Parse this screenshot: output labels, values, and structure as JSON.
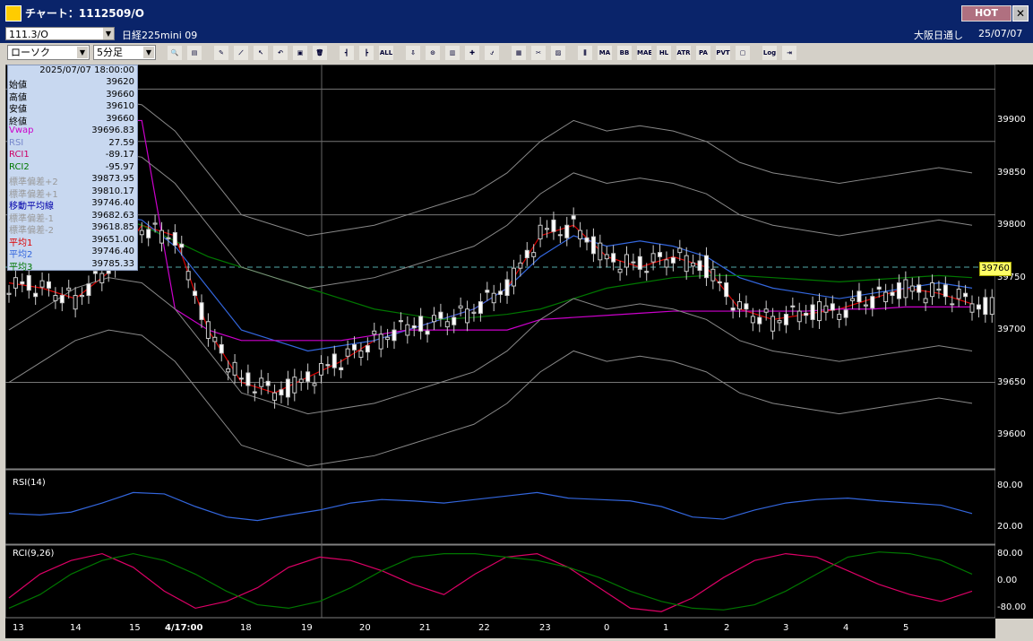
{
  "window": {
    "title": "チャート：1112509/O",
    "hot_label": "HOT",
    "close": "✕"
  },
  "infobar": {
    "symbol": "111.3/O",
    "instrument": "日経225mini 09",
    "source": "大阪日通し",
    "date": "25/07/07"
  },
  "toolbar": {
    "chart_type": "ローソク",
    "timeframe": "5分足",
    "buttons": [
      {
        "name": "zoom",
        "label": "🔍"
      },
      {
        "name": "panel",
        "label": "▤"
      },
      {
        "name": "draw",
        "label": "✎"
      },
      {
        "name": "line",
        "label": "⟋"
      },
      {
        "name": "pointer",
        "label": "↖"
      },
      {
        "name": "undo",
        "label": "↶"
      },
      {
        "name": "note",
        "label": "▣"
      },
      {
        "name": "delete",
        "label": "🗑"
      },
      {
        "name": "candle1",
        "label": "┫"
      },
      {
        "name": "candle2",
        "label": "┣"
      },
      {
        "name": "all",
        "label": "ALL"
      },
      {
        "name": "down",
        "label": "⇩"
      },
      {
        "name": "find",
        "label": "⊙"
      },
      {
        "name": "volume",
        "label": "▥"
      },
      {
        "name": "cross",
        "label": "✚"
      },
      {
        "name": "calc",
        "label": "⍻"
      },
      {
        "name": "grid",
        "label": "▦"
      },
      {
        "name": "tool",
        "label": "✂"
      },
      {
        "name": "color",
        "label": "▨"
      },
      {
        "name": "bars",
        "label": "⫼"
      },
      {
        "name": "ma",
        "label": "MA"
      },
      {
        "name": "bb",
        "label": "BB"
      },
      {
        "name": "mae",
        "label": "MAE"
      },
      {
        "name": "hl",
        "label": "HL"
      },
      {
        "name": "atr",
        "label": "ATR"
      },
      {
        "name": "pa",
        "label": "PA"
      },
      {
        "name": "pvt",
        "label": "PVT"
      },
      {
        "name": "box",
        "label": "▢"
      },
      {
        "name": "log",
        "label": "Log"
      },
      {
        "name": "export",
        "label": "⇥"
      }
    ]
  },
  "info_panel": {
    "datetime": "2025/07/07 18:00:00",
    "rows": [
      {
        "label": "始値",
        "value": "39620",
        "color": "#000"
      },
      {
        "label": "高値",
        "value": "39660",
        "color": "#000"
      },
      {
        "label": "安値",
        "value": "39610",
        "color": "#000"
      },
      {
        "label": "終値",
        "value": "39660",
        "color": "#000"
      },
      {
        "label": "Vwap",
        "value": "39696.83",
        "color": "#cc00cc"
      },
      {
        "label": "RSI",
        "value": "27.59",
        "color": "#7788cc"
      },
      {
        "label": "RCI1",
        "value": "-89.17",
        "color": "#cc0066"
      },
      {
        "label": "RCI2",
        "value": "-95.97",
        "color": "#007700"
      },
      {
        "label": "標準偏差+2",
        "value": "39873.95",
        "color": "#999999"
      },
      {
        "label": "標準偏差+1",
        "value": "39810.17",
        "color": "#999999"
      },
      {
        "label": "移動平均線",
        "value": "39746.40",
        "color": "#0000aa"
      },
      {
        "label": "標準偏差-1",
        "value": "39682.63",
        "color": "#999999"
      },
      {
        "label": "標準偏差-2",
        "value": "39618.85",
        "color": "#999999"
      },
      {
        "label": "平均1",
        "value": "39651.00",
        "color": "#dd0000"
      },
      {
        "label": "平均2",
        "value": "39746.40",
        "color": "#3366dd"
      },
      {
        "label": "平均3",
        "value": "39785.33",
        "color": "#007700"
      }
    ]
  },
  "current_price": "39760",
  "panels": {
    "rsi_label": "RSI(14)",
    "rci_label": "RCI(9,26)"
  },
  "chart_data": {
    "type": "line",
    "title": "",
    "price_axis": {
      "ticks": [
        "39900",
        "39850",
        "39800",
        "39750",
        "39700",
        "39650",
        "39600"
      ],
      "ylim": [
        39570,
        39950
      ]
    },
    "rsi_axis": {
      "ticks": [
        "80.00",
        "20.00"
      ],
      "ylim": [
        0,
        100
      ]
    },
    "rci_axis": {
      "ticks": [
        "80.00",
        "0.00",
        "-80.00"
      ],
      "ylim": [
        -100,
        100
      ]
    },
    "x_ticks": [
      "13",
      "14",
      "15",
      "4/17:00",
      "18",
      "19",
      "20",
      "21",
      "22",
      "23",
      "0",
      "1",
      "2",
      "3",
      "4",
      "5"
    ],
    "series": [
      {
        "name": "平均1",
        "color": "#dd0000",
        "values": [
          39745,
          39740,
          39730,
          39755,
          39800,
          39790,
          39700,
          39650,
          39640,
          39655,
          39670,
          39690,
          39700,
          39710,
          39720,
          39740,
          39790,
          39800,
          39770,
          39760,
          39770,
          39760,
          39720,
          39710,
          39715,
          39720,
          39730,
          39740,
          39735,
          39725
        ]
      },
      {
        "name": "平均2",
        "color": "#3366dd",
        "values": [
          39760,
          39780,
          39800,
          39810,
          39805,
          39780,
          39740,
          39700,
          39690,
          39680,
          39685,
          39690,
          39700,
          39710,
          39720,
          39740,
          39770,
          39790,
          39780,
          39785,
          39780,
          39770,
          39750,
          39740,
          39735,
          39730,
          39735,
          39740,
          39745,
          39740
        ]
      },
      {
        "name": "平均3",
        "color": "#007700",
        "values": [
          39790,
          39800,
          39812,
          39810,
          39800,
          39785,
          39770,
          39760,
          39750,
          39740,
          39730,
          39720,
          39715,
          39710,
          39712,
          39715,
          39720,
          39730,
          39740,
          39745,
          39750,
          39752,
          39752,
          39750,
          39748,
          39746,
          39748,
          39750,
          39752,
          39750
        ]
      },
      {
        "name": "Vwap",
        "color": "#cc00cc",
        "values": [
          39900,
          39900,
          39900,
          39900,
          39900,
          39720,
          39700,
          39690,
          39690,
          39690,
          39690,
          39695,
          39700,
          39700,
          39700,
          39700,
          39710,
          39712,
          39714,
          39716,
          39718,
          39718,
          39718,
          39718,
          39718,
          39720,
          39720,
          39722,
          39722,
          39722
        ]
      }
    ],
    "rsi": [
      40,
      38,
      42,
      55,
      70,
      68,
      50,
      35,
      30,
      38,
      45,
      55,
      60,
      58,
      55,
      60,
      65,
      70,
      62,
      60,
      58,
      50,
      35,
      32,
      45,
      55,
      60,
      62,
      58,
      55,
      52,
      40
    ],
    "rci1": [
      -50,
      20,
      60,
      80,
      40,
      -30,
      -80,
      -60,
      -20,
      40,
      70,
      60,
      30,
      -10,
      -40,
      20,
      70,
      80,
      40,
      -20,
      -80,
      -90,
      -50,
      10,
      60,
      80,
      70,
      30,
      -10,
      -40,
      -60,
      -30
    ],
    "rci2": [
      -80,
      -40,
      20,
      60,
      80,
      60,
      20,
      -30,
      -70,
      -80,
      -60,
      -20,
      30,
      70,
      80,
      80,
      70,
      60,
      40,
      10,
      -30,
      -60,
      -80,
      -85,
      -70,
      -30,
      20,
      70,
      85,
      80,
      60,
      20
    ]
  }
}
